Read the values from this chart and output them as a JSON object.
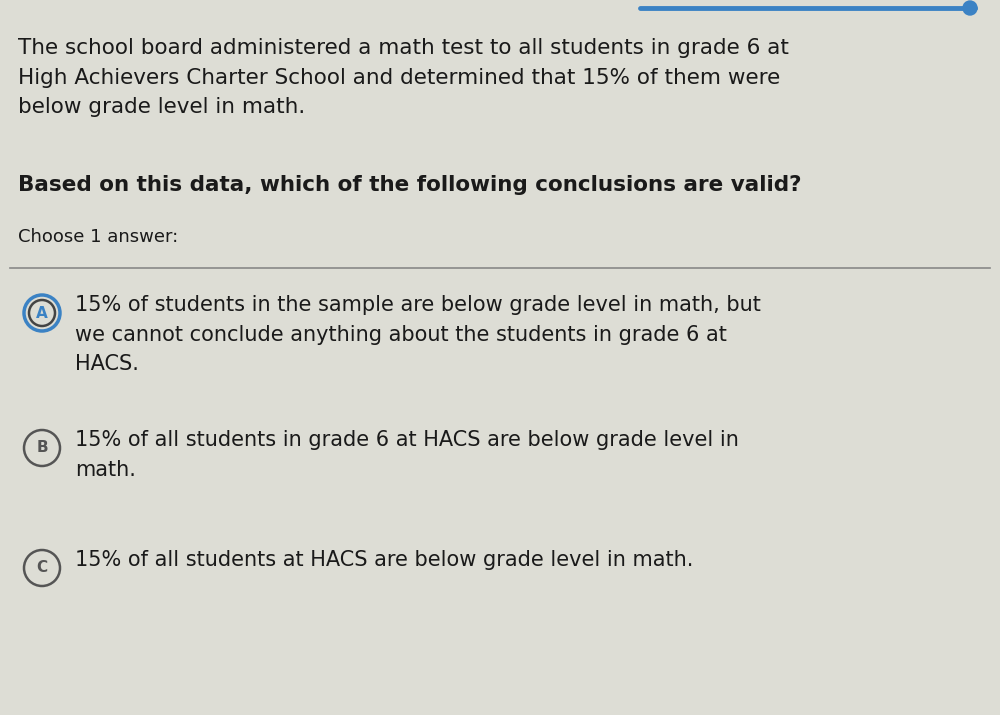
{
  "background_color": "#ddddd5",
  "top_bar_color": "#3b82c4",
  "top_bar_circle_color": "#3b82c4",
  "paragraph_text": "The school board administered a math test to all students in grade 6 at\nHigh Achievers Charter School and determined that 15% of them were\nbelow grade level in math.",
  "question_text": "Based on this data, which of the following conclusions are valid?",
  "choose_text": "Choose 1 answer:",
  "divider_color": "#888888",
  "option_A_circle_outline": "#3b82c4",
  "option_A_circle_inner": "#444444",
  "option_A_label": "A",
  "option_A_text": "15% of students in the sample are below grade level in math, but\nwe cannot conclude anything about the students in grade 6 at\nHACS.",
  "option_B_circle_outline": "#555555",
  "option_B_label": "B",
  "option_B_text": "15% of all students in grade 6 at HACS are below grade level in\nmath.",
  "option_C_circle_outline": "#555555",
  "option_C_label": "C",
  "option_C_text": "15% of all students at HACS are below grade level in math.",
  "para_fontsize": 15.5,
  "question_fontsize": 15.5,
  "choose_fontsize": 13,
  "option_fontsize": 15,
  "text_color": "#1a1a1a"
}
